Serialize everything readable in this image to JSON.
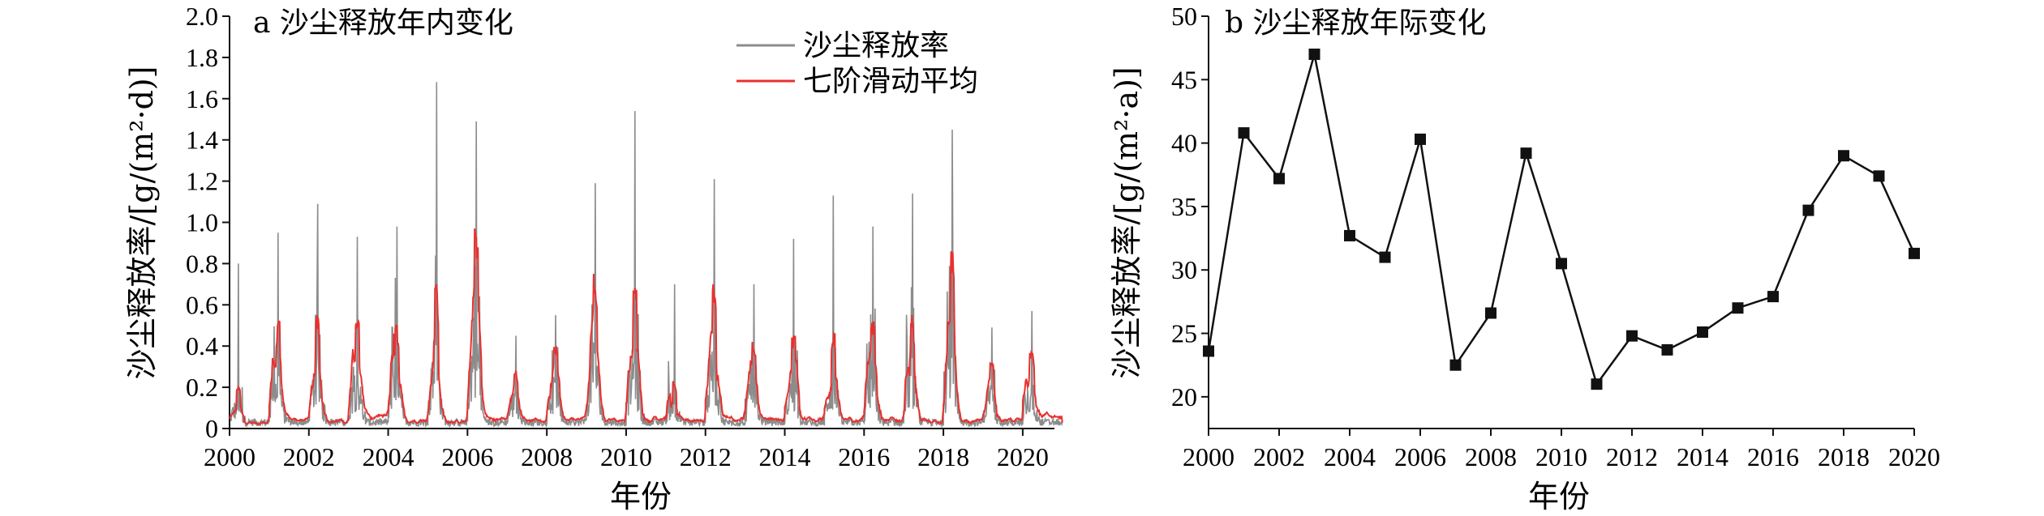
{
  "chart_data": [
    {
      "type": "line",
      "panel_label": "a 沙尘释放年内变化",
      "xlabel": "年份",
      "ylabel": "沙尘释放率/[g/(m²·d)]",
      "xlim": [
        2000,
        2020.8
      ],
      "ylim": [
        0,
        2.0
      ],
      "x_ticks": [
        2000,
        2002,
        2004,
        2006,
        2008,
        2010,
        2012,
        2014,
        2016,
        2018,
        2020
      ],
      "x_tick_labels": [
        "2000",
        "2002",
        "2004",
        "2006",
        "2008",
        "2010",
        "2012",
        "2014",
        "2016",
        "2018",
        "2020"
      ],
      "y_ticks": [
        0,
        0.2,
        0.4,
        0.6,
        0.8,
        1.0,
        1.2,
        1.4,
        1.6,
        1.8,
        2.0
      ],
      "y_tick_labels": [
        "0",
        "0.2",
        "0.4",
        "0.6",
        "0.8",
        "1.0",
        "1.2",
        "1.4",
        "1.6",
        "1.8",
        "2.0"
      ],
      "legend": [
        "沙尘释放率",
        "七阶滑动平均"
      ],
      "legend_position": "top-right",
      "series_colors": [
        "#8c8c8c",
        "#e8312f"
      ],
      "annual_peaks": [
        {
          "year": 2000,
          "peak": 0.8,
          "smooth_peak": 0.2
        },
        {
          "year": 2001,
          "peak": 0.95,
          "smooth_peak": 0.52
        },
        {
          "year": 2002,
          "peak": 1.09,
          "smooth_peak": 0.55
        },
        {
          "year": 2003,
          "peak": 0.93,
          "smooth_peak": 0.52
        },
        {
          "year": 2004,
          "peak": 0.98,
          "smooth_peak": 0.5
        },
        {
          "year": 2005,
          "peak": 1.68,
          "smooth_peak": 0.7
        },
        {
          "year": 2006,
          "peak": 1.49,
          "smooth_peak": 0.97
        },
        {
          "year": 2007,
          "peak": 0.45,
          "smooth_peak": 0.28
        },
        {
          "year": 2008,
          "peak": 0.55,
          "smooth_peak": 0.4
        },
        {
          "year": 2009,
          "peak": 1.19,
          "smooth_peak": 0.75
        },
        {
          "year": 2010,
          "peak": 1.54,
          "smooth_peak": 0.68
        },
        {
          "year": 2011,
          "peak": 0.7,
          "smooth_peak": 0.23
        },
        {
          "year": 2012,
          "peak": 1.21,
          "smooth_peak": 0.7
        },
        {
          "year": 2013,
          "peak": 0.7,
          "smooth_peak": 0.42
        },
        {
          "year": 2014,
          "peak": 0.92,
          "smooth_peak": 0.45
        },
        {
          "year": 2015,
          "peak": 1.13,
          "smooth_peak": 0.46
        },
        {
          "year": 2016,
          "peak": 0.98,
          "smooth_peak": 0.52
        },
        {
          "year": 2017,
          "peak": 1.14,
          "smooth_peak": 0.55
        },
        {
          "year": 2018,
          "peak": 1.45,
          "smooth_peak": 0.86
        },
        {
          "year": 2019,
          "peak": 0.49,
          "smooth_peak": 0.32
        },
        {
          "year": 2020,
          "peak": 0.57,
          "smooth_peak": 0.37
        }
      ]
    },
    {
      "type": "line",
      "panel_label": "b 沙尘释放年际变化",
      "xlabel": "年份",
      "ylabel": "沙尘释放率/[g/(m²·a)]",
      "xlim": [
        2000,
        2020
      ],
      "ylim": [
        17.5,
        50
      ],
      "x_ticks": [
        2000,
        2002,
        2004,
        2006,
        2008,
        2010,
        2012,
        2014,
        2016,
        2018,
        2020
      ],
      "x_tick_labels": [
        "2000",
        "2002",
        "2004",
        "2006",
        "2008",
        "2010",
        "2012",
        "2014",
        "2016",
        "2018",
        "2020"
      ],
      "y_ticks": [
        20,
        25,
        30,
        35,
        40,
        45,
        50
      ],
      "y_tick_labels": [
        "20",
        "25",
        "30",
        "35",
        "40",
        "45",
        "50"
      ],
      "marker": "square",
      "series_color": "#111111",
      "x": [
        2000,
        2001,
        2002,
        2003,
        2004,
        2005,
        2006,
        2007,
        2008,
        2009,
        2010,
        2011,
        2012,
        2013,
        2014,
        2015,
        2016,
        2017,
        2018,
        2019,
        2020
      ],
      "values": [
        23.6,
        40.8,
        37.2,
        47.0,
        32.7,
        31.0,
        40.3,
        22.5,
        26.6,
        39.2,
        30.5,
        21.0,
        24.8,
        23.7,
        25.1,
        27.0,
        27.9,
        34.7,
        39.0,
        37.4,
        31.3
      ]
    }
  ]
}
